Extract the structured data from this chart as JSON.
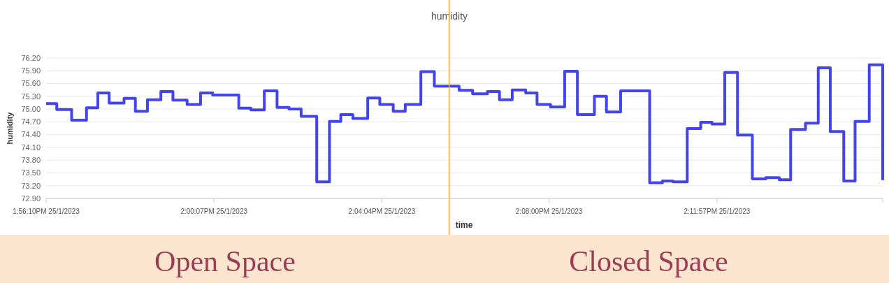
{
  "chart_data": {
    "type": "step",
    "title": "humidity",
    "xlabel": "time",
    "ylabel": "humidity",
    "x": [
      "2023-01-25T13:56:10",
      "2023-01-25T13:56:25",
      "2023-01-25T13:56:46",
      "2023-01-25T13:57:07",
      "2023-01-25T13:57:23",
      "2023-01-25T13:57:39",
      "2023-01-25T13:58:00",
      "2023-01-25T13:58:16",
      "2023-01-25T13:58:33",
      "2023-01-25T13:58:52",
      "2023-01-25T13:59:09",
      "2023-01-25T13:59:29",
      "2023-01-25T13:59:48",
      "2023-01-25T14:00:05",
      "2023-01-25T14:00:42",
      "2023-01-25T14:00:59",
      "2023-01-25T14:01:18",
      "2023-01-25T14:01:36",
      "2023-01-25T14:01:53",
      "2023-01-25T14:02:10",
      "2023-01-25T14:02:32",
      "2023-01-25T14:02:50",
      "2023-01-25T14:03:06",
      "2023-01-25T14:03:23",
      "2023-01-25T14:03:44",
      "2023-01-25T14:04:01",
      "2023-01-25T14:04:20",
      "2023-01-25T14:04:37",
      "2023-01-25T14:04:59",
      "2023-01-25T14:05:18",
      "2023-01-25T14:05:53",
      "2023-01-25T14:06:12",
      "2023-01-25T14:06:33",
      "2023-01-25T14:06:50",
      "2023-01-25T14:07:08",
      "2023-01-25T14:07:27",
      "2023-01-25T14:07:43",
      "2023-01-25T14:08:02",
      "2023-01-25T14:08:22",
      "2023-01-25T14:08:40",
      "2023-01-25T14:09:04",
      "2023-01-25T14:09:21",
      "2023-01-25T14:09:41",
      "2023-01-25T14:10:22",
      "2023-01-25T14:10:40",
      "2023-01-25T14:10:55",
      "2023-01-25T14:11:15",
      "2023-01-25T14:11:34",
      "2023-01-25T14:11:50",
      "2023-01-25T14:12:08",
      "2023-01-25T14:12:26",
      "2023-01-25T14:12:47",
      "2023-01-25T14:13:06",
      "2023-01-25T14:13:25",
      "2023-01-25T14:13:41",
      "2023-01-25T14:14:02",
      "2023-01-25T14:14:20",
      "2023-01-25T14:14:37",
      "2023-01-25T14:14:56",
      "2023-01-25T14:15:12",
      "2023-01-25T14:15:32",
      "2023-01-25T14:15:51"
    ],
    "series": [
      {
        "color": "#4444ee",
        "values": [
          75.13,
          74.99,
          74.74,
          75.03,
          75.38,
          75.14,
          75.25,
          74.95,
          75.22,
          75.41,
          75.21,
          75.11,
          75.38,
          75.33,
          75.02,
          74.98,
          75.43,
          75.04,
          75.0,
          74.83,
          73.29,
          74.71,
          74.87,
          74.78,
          75.26,
          75.11,
          74.95,
          75.11,
          75.88,
          75.54,
          75.44,
          75.36,
          75.41,
          75.22,
          75.45,
          75.38,
          75.11,
          75.05,
          75.89,
          74.87,
          75.3,
          74.93,
          75.43,
          73.27,
          73.31,
          73.29,
          74.54,
          74.69,
          74.65,
          75.86,
          74.39,
          73.36,
          73.39,
          73.34,
          74.52,
          74.67,
          75.97,
          74.47,
          73.31,
          74.71,
          76.04,
          73.33
        ]
      }
    ],
    "xlim": [
      "2023-01-25T13:56:10",
      "2023-01-25T14:15:51"
    ],
    "xticks": [
      {
        "value": "2023-01-25T13:56:10",
        "label": "1:56:10PM 25/1/2023"
      },
      {
        "value": "2023-01-25T14:00:07",
        "label": "2:00:07PM 25/1/2023"
      },
      {
        "value": "2023-01-25T14:04:04",
        "label": "2:04:04PM 25/1/2023"
      },
      {
        "value": "2023-01-25T14:08:00",
        "label": "2:08:00PM 25/1/2023"
      },
      {
        "value": "2023-01-25T14:11:57",
        "label": "2:11:57PM 25/1/2023"
      },
      {
        "value": "2023-01-25T14:15:51",
        "label": null
      }
    ],
    "ylim": [
      72.9,
      76.2
    ],
    "yticks": [
      {
        "value": 72.9,
        "label": "72.90"
      },
      {
        "value": 73.2,
        "label": "73.20"
      },
      {
        "value": 73.5,
        "label": "73.50"
      },
      {
        "value": 73.8,
        "label": "73.80"
      },
      {
        "value": 74.1,
        "label": "74.10"
      },
      {
        "value": 74.4,
        "label": "74.40"
      },
      {
        "value": 74.7,
        "label": "74.70"
      },
      {
        "value": 75.0,
        "label": "75.00"
      },
      {
        "value": 75.3,
        "label": "75.30"
      },
      {
        "value": 75.6,
        "label": "75.60"
      },
      {
        "value": 75.9,
        "label": "75.90"
      },
      {
        "value": 76.2,
        "label": "76.20"
      }
    ],
    "grid": "y",
    "ref_lines": [
      {
        "axis": "x",
        "value": "2023-01-25T14:05:39",
        "label": null,
        "color": "#f5b800"
      }
    ],
    "annotations": [
      "Open Space",
      "Closed Space"
    ]
  }
}
